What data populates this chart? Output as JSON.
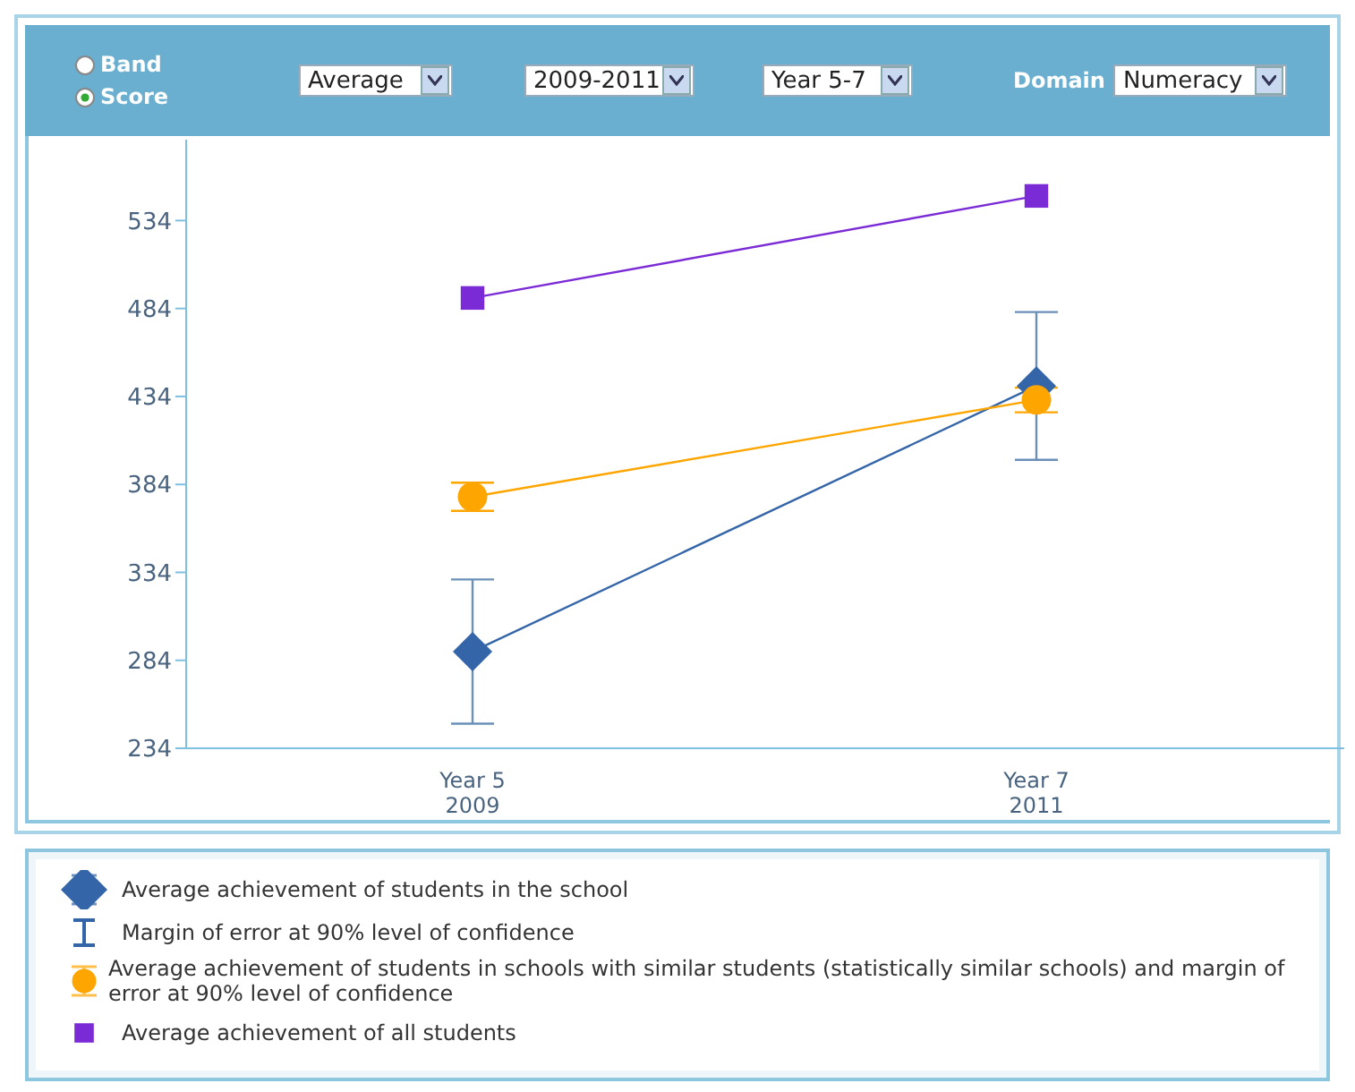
{
  "chart_data": {
    "type": "line",
    "categories": [
      "Year 5\n2009",
      "Year 7\n2011"
    ],
    "series": [
      {
        "name": "Average achievement of students in the school",
        "color": "#3465a8",
        "marker": "diamond",
        "values": [
          289,
          440
        ],
        "errors": [
          41,
          42
        ]
      },
      {
        "name": "Average achievement of students in schools with similar students (statistically similar schools) and margin of error at 90% level of confidence",
        "color": "#ffa500",
        "marker": "circle",
        "values": [
          377,
          432
        ],
        "errors": [
          8,
          7
        ]
      },
      {
        "name": "Average achievement of all students",
        "color": "#7b2bd6",
        "marker": "square",
        "values": [
          490,
          548
        ]
      }
    ],
    "ylim": [
      234,
      580
    ],
    "yticks": [
      234,
      284,
      334,
      384,
      434,
      484,
      534
    ],
    "grid": false,
    "legend": "bottom",
    "annotations": [
      "Band",
      "Score",
      "Average",
      "2009-2011",
      "Year 5-7",
      "Domain",
      "Numeracy",
      "Margin of error at 90% level of confidence"
    ]
  }
}
